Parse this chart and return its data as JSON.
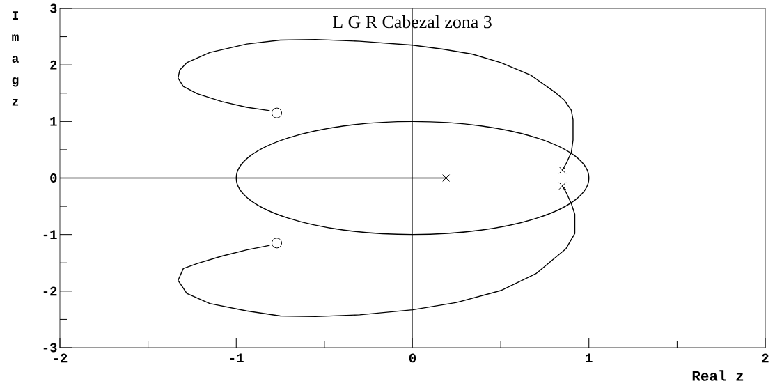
{
  "chart_data": {
    "type": "line",
    "title": "L G R Cabezal zona 3",
    "xlabel": "Real z",
    "ylabel": "Imag z",
    "xlim": [
      -2,
      2
    ],
    "ylim": [
      -3,
      3
    ],
    "xticks": [
      -2,
      {
        "value": -1.5,
        "label": null
      },
      -1,
      {
        "value": -0.5,
        "label": null
      },
      0,
      {
        "value": 0.5,
        "label": null
      },
      1,
      {
        "value": 1.5,
        "label": null
      },
      2
    ],
    "yticks": [
      -3,
      {
        "value": -2.5,
        "label": null
      },
      -2,
      {
        "value": -1.5,
        "label": null
      },
      -1,
      {
        "value": -0.5,
        "label": null
      },
      0,
      {
        "value": 0.5,
        "label": null
      },
      1,
      {
        "value": 1.5,
        "label": null
      },
      2,
      {
        "value": 2.5,
        "label": null
      },
      3
    ],
    "ref_lines": [
      {
        "axis": "x",
        "value": 0,
        "color": "#404040"
      },
      {
        "axis": "y",
        "value": 0,
        "color": "#000000"
      }
    ],
    "series": [
      {
        "color": "#000000",
        "x": [
          0.85,
          0.87,
          0.9,
          0.91,
          0.91,
          0.9,
          0.86,
          0.81,
          0.67,
          0.5,
          0.34,
          0.17,
          0,
          -0.3,
          -0.55,
          -0.75,
          -0.94,
          -1.15,
          -1.28,
          -1.32,
          -1.33,
          -1.3,
          -1.22,
          -1.08,
          -0.94,
          -0.81
        ],
        "values": [
          0.14,
          0.25,
          0.45,
          0.67,
          1.03,
          1.2,
          1.38,
          1.51,
          1.82,
          2.04,
          2.19,
          2.28,
          2.35,
          2.42,
          2.45,
          2.44,
          2.37,
          2.22,
          2.04,
          1.91,
          1.77,
          1.62,
          1.49,
          1.35,
          1.25,
          1.19
        ]
      },
      {
        "color": "#000000",
        "x": [
          0.85,
          0.87,
          0.9,
          0.92,
          0.92,
          0.87,
          0.7,
          0.5,
          0.25,
          0,
          -0.3,
          -0.55,
          -0.75,
          -0.94,
          -1.15,
          -1.28,
          -1.33,
          -1.3,
          -1.22,
          -1.08,
          -0.94,
          -0.81
        ],
        "values": [
          -0.14,
          -0.25,
          -0.45,
          -0.64,
          -0.98,
          -1.25,
          -1.69,
          -1.99,
          -2.2,
          -2.33,
          -2.42,
          -2.45,
          -2.44,
          -2.35,
          -2.22,
          -2.04,
          -1.81,
          -1.6,
          -1.51,
          -1.38,
          -1.27,
          -1.19
        ]
      },
      {
        "color": "#000000",
        "x": [
          0.19,
          -2
        ],
        "values": [
          0,
          0
        ]
      },
      {
        "type": "scatter",
        "color": "#000000",
        "marker": "cross",
        "x": [
          0.19,
          0.85,
          0.85
        ],
        "values": [
          0,
          0.14,
          -0.14
        ]
      },
      {
        "type": "scatter",
        "color": "#000000",
        "marker": "circle",
        "x": [
          -0.77,
          -0.77
        ],
        "values": [
          1.15,
          -1.15
        ]
      }
    ]
  }
}
